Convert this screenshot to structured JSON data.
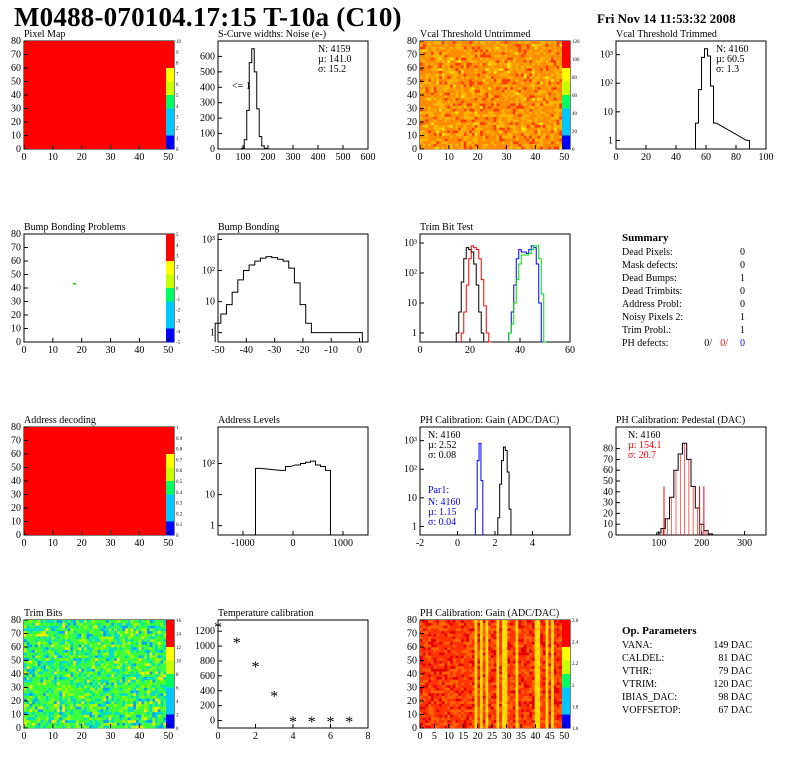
{
  "header": {
    "title": "M0488-070104.17:15 T-10a (C10)",
    "timestamp": "Fri Nov 14 11:53:32 2008"
  },
  "colors": {
    "red": "#ff0000",
    "blue": "#0000ff",
    "green": "#00dd00",
    "black": "#000000"
  },
  "chart_data": [
    {
      "id": "pixel-map",
      "type": "heatmap",
      "title": "Pixel Map",
      "xlim": [
        0,
        52
      ],
      "ylim": [
        0,
        80
      ],
      "xticks": [
        "0",
        "10",
        "20",
        "30",
        "40",
        "50"
      ],
      "yticks": [
        "0",
        "10",
        "20",
        "30",
        "40",
        "50",
        "60",
        "70",
        "80"
      ],
      "fill": "uniform-red",
      "value": 10,
      "palette_ticks": [
        "0",
        "1",
        "2",
        "3",
        "4",
        "5",
        "6",
        "7",
        "8",
        "9",
        "10"
      ]
    },
    {
      "id": "scurve-noise",
      "type": "bar",
      "title": "S-Curve widths: Noise (e-)",
      "xlim": [
        0,
        600
      ],
      "ylim": [
        0,
        700
      ],
      "xticks": [
        "0",
        "100",
        "200",
        "300",
        "400",
        "500",
        "600"
      ],
      "yticks": [
        "0",
        "100",
        "200",
        "300",
        "400",
        "500",
        "600"
      ],
      "x": [
        100,
        110,
        120,
        130,
        140,
        150,
        160,
        170,
        180,
        190,
        200
      ],
      "values": [
        5,
        60,
        250,
        560,
        650,
        500,
        260,
        80,
        20,
        5,
        0
      ],
      "stats": [
        "N: 4159",
        "µ: 141.0",
        "σ: 15.2"
      ],
      "annotation": "<= 1"
    },
    {
      "id": "vcal-untrimmed",
      "type": "heatmap",
      "title": "Vcal Threshold Untrimmed",
      "xlim": [
        0,
        52
      ],
      "ylim": [
        0,
        80
      ],
      "xticks": [
        "0",
        "10",
        "20",
        "30",
        "40",
        "50"
      ],
      "yticks": [
        "0",
        "10",
        "20",
        "30",
        "40",
        "50",
        "60",
        "70",
        "80"
      ],
      "fill": "noise-orange",
      "palette_ticks": [
        "0",
        "20",
        "40",
        "60",
        "80",
        "100",
        "120"
      ]
    },
    {
      "id": "vcal-trimmed",
      "type": "bar",
      "title": "Vcal Threshold Trimmed",
      "xlim": [
        0,
        100
      ],
      "ylim": [
        0.5,
        3000
      ],
      "log_y": true,
      "xticks": [
        "0",
        "20",
        "40",
        "60",
        "80",
        "100"
      ],
      "yticks": [
        "1",
        "10",
        "10²",
        "10³"
      ],
      "x": [
        54,
        56,
        58,
        60,
        62,
        64,
        66,
        88
      ],
      "values": [
        4,
        60,
        800,
        1600,
        900,
        80,
        4,
        1
      ],
      "stats": [
        "N: 4160",
        "µ: 60.5",
        "σ:  1.3"
      ]
    },
    {
      "id": "bump-bonding-problems",
      "type": "heatmap",
      "title": "Bump Bonding Problems",
      "xlim": [
        0,
        52
      ],
      "ylim": [
        0,
        80
      ],
      "xticks": [
        "0",
        "10",
        "20",
        "30",
        "40",
        "50"
      ],
      "yticks": [
        "0",
        "10",
        "20",
        "30",
        "40",
        "50",
        "60",
        "70",
        "80"
      ],
      "fill": "sparse",
      "points": [
        [
          17,
          43
        ]
      ],
      "palette_ticks": [
        "-5",
        "-4",
        "-3",
        "-2",
        "-1",
        "0",
        "1",
        "2",
        "3",
        "4",
        "5"
      ]
    },
    {
      "id": "bump-bonding",
      "type": "bar",
      "title": "Bump Bonding",
      "xlim": [
        -50,
        3
      ],
      "ylim": [
        0.5,
        1500
      ],
      "log_y": true,
      "xticks": [
        "-50",
        "-40",
        "-30",
        "-20",
        "-10",
        "0"
      ],
      "yticks": [
        "1",
        "10",
        "10²",
        "10³"
      ],
      "x": [
        -50,
        -48,
        -46,
        -44,
        -42,
        -40,
        -38,
        -36,
        -34,
        -32,
        -30,
        -28,
        -26,
        -24,
        -22,
        -20,
        -18,
        -16,
        0
      ],
      "values": [
        2,
        4,
        8,
        20,
        50,
        100,
        150,
        200,
        250,
        280,
        260,
        230,
        200,
        120,
        40,
        8,
        2,
        1,
        1
      ]
    },
    {
      "id": "trim-bit-test",
      "type": "line",
      "title": "Trim Bit Test",
      "xlim": [
        0,
        60
      ],
      "ylim": [
        0.5,
        2000
      ],
      "log_y": true,
      "xticks": [
        "0",
        "20",
        "40",
        "60"
      ],
      "yticks": [
        "1",
        "10",
        "10²",
        "10³"
      ],
      "series": [
        {
          "x": [
            15,
            16,
            17,
            18,
            19,
            20,
            21,
            22,
            23,
            24,
            25,
            26
          ],
          "values": [
            1,
            5,
            50,
            300,
            700,
            600,
            500,
            200,
            40,
            5,
            1,
            0
          ]
        },
        {
          "x": [
            17,
            18,
            19,
            20,
            21,
            22,
            23,
            24,
            25,
            26,
            27,
            28
          ],
          "values": [
            1,
            5,
            40,
            300,
            800,
            700,
            600,
            300,
            60,
            8,
            1,
            0
          ]
        },
        {
          "x": [
            36,
            37,
            38,
            39,
            40,
            41,
            42,
            43,
            44,
            45,
            46,
            47,
            48,
            49
          ],
          "values": [
            1,
            5,
            40,
            300,
            600,
            500,
            500,
            450,
            600,
            800,
            700,
            200,
            10,
            0
          ]
        },
        {
          "x": [
            36,
            37,
            38,
            39,
            40,
            41,
            42,
            43,
            44,
            45,
            46,
            47,
            48,
            49,
            50
          ],
          "values": [
            1,
            2,
            10,
            60,
            200,
            400,
            400,
            400,
            450,
            600,
            800,
            800,
            300,
            20,
            0
          ]
        }
      ]
    },
    {
      "id": "address-decoding",
      "type": "heatmap",
      "title": "Address decoding",
      "xlim": [
        0,
        52
      ],
      "ylim": [
        0,
        80
      ],
      "xticks": [
        "0",
        "10",
        "20",
        "30",
        "40",
        "50"
      ],
      "yticks": [
        "0",
        "10",
        "20",
        "30",
        "40",
        "50",
        "60",
        "70",
        "80"
      ],
      "fill": "uniform-red",
      "value": 1,
      "palette_ticks": [
        "0",
        "0.1",
        "0.2",
        "0.3",
        "0.4",
        "0.5",
        "0.6",
        "0.7",
        "0.8",
        "0.9",
        "1"
      ]
    },
    {
      "id": "address-levels",
      "type": "bar",
      "title": "Address Levels",
      "xlim": [
        -1500,
        1500
      ],
      "ylim": [
        0.5,
        1500
      ],
      "log_y": true,
      "xticks": [
        "-1000",
        "0",
        "1000"
      ],
      "yticks": [
        "1",
        "10",
        "10²"
      ],
      "x": [
        -700,
        -200,
        -100,
        100,
        200,
        300,
        400,
        500,
        600,
        700
      ],
      "values": [
        70,
        60,
        80,
        90,
        100,
        110,
        120,
        90,
        80,
        60
      ]
    },
    {
      "id": "ph-gain",
      "type": "bar",
      "title": "PH Calibration: Gain (ADC/DAC)",
      "xlim": [
        -2,
        6
      ],
      "ylim": [
        0.5,
        3000
      ],
      "log_y": true,
      "xticks": [
        "-2",
        "0",
        "2",
        "4"
      ],
      "yticks": [
        "1",
        "10",
        "10²",
        "10³"
      ],
      "series": [
        {
          "x": [
            2.2,
            2.3,
            2.4,
            2.5,
            2.6,
            2.7,
            2.8
          ],
          "values": [
            2,
            30,
            200,
            600,
            450,
            80,
            4
          ]
        },
        {
          "x": [
            1.0,
            1.1,
            1.2,
            1.3
          ],
          "values": [
            4,
            200,
            800,
            40
          ]
        }
      ],
      "stats": [
        "N: 4160",
        "µ: 2.52",
        "σ: 0.08"
      ],
      "par_label": "Par1:",
      "par_stats": [
        "N: 4160",
        "µ: 1.15",
        "σ: 0.04"
      ]
    },
    {
      "id": "ph-pedestal",
      "type": "bar",
      "title": "PH Calibration: Pedestal (DAC)",
      "xlim": [
        0,
        350
      ],
      "ylim": [
        0,
        100
      ],
      "xticks": [
        "100",
        "200",
        "300"
      ],
      "yticks": [
        "0",
        "10",
        "20",
        "30",
        "40",
        "50",
        "60",
        "70",
        "80"
      ],
      "x": [
        100,
        110,
        120,
        130,
        140,
        150,
        160,
        170,
        180,
        190,
        200,
        210,
        220
      ],
      "values": [
        2,
        6,
        15,
        35,
        60,
        75,
        85,
        70,
        45,
        25,
        10,
        4,
        1
      ],
      "fit_lines": [
        112,
        195,
        205
      ],
      "stats": [
        "N: 4160",
        "µ: 154.1",
        "σ: 20.7"
      ]
    },
    {
      "id": "trim-bits",
      "type": "heatmap",
      "title": "Trim Bits",
      "xlim": [
        0,
        52
      ],
      "ylim": [
        0,
        80
      ],
      "xticks": [
        "0",
        "10",
        "20",
        "30",
        "40",
        "50"
      ],
      "yticks": [
        "0",
        "10",
        "20",
        "30",
        "40",
        "50",
        "60",
        "70",
        "80"
      ],
      "fill": "noise-green",
      "palette_ticks": [
        "0",
        "2",
        "4",
        "6",
        "8",
        "10",
        "12",
        "14",
        "16"
      ]
    },
    {
      "id": "temperature-calibration",
      "type": "scatter",
      "title": "Temperature calibration",
      "xlim": [
        0,
        8
      ],
      "ylim": [
        -100,
        1350
      ],
      "xticks": [
        "0",
        "2",
        "4",
        "6",
        "8"
      ],
      "yticks": [
        "0",
        "200",
        "400",
        "600",
        "800",
        "1000",
        "1200"
      ],
      "x": [
        0,
        1,
        2,
        3,
        4,
        5,
        6,
        7
      ],
      "values": [
        1250,
        1040,
        720,
        320,
        -20,
        -20,
        -20,
        -20
      ]
    },
    {
      "id": "ph-gain-map",
      "type": "heatmap",
      "title": "PH Calibration: Gain (ADC/DAC)",
      "xlim": [
        0,
        52
      ],
      "ylim": [
        0,
        80
      ],
      "xticks": [
        "0",
        "5",
        "10",
        "15",
        "20",
        "25",
        "30",
        "35",
        "40",
        "45",
        "50"
      ],
      "yticks": [
        "0",
        "10",
        "20",
        "30",
        "40",
        "50",
        "60",
        "70",
        "80"
      ],
      "fill": "column-stripes",
      "palette_ticks": [
        "1.6",
        "1.8",
        "2",
        "2.2",
        "2.4",
        "2.6"
      ]
    }
  ],
  "summary": {
    "title": "Summary",
    "rows": [
      {
        "label": "Dead Pixels:",
        "value": "0"
      },
      {
        "label": "Mask defects:",
        "value": "0"
      },
      {
        "label": "Dead Bumps:",
        "value": "1"
      },
      {
        "label": "Dead Trimbits:",
        "value": "0"
      },
      {
        "label": "Address Probl:",
        "value": "0"
      },
      {
        "label": "Noisy Pixels 2:",
        "value": "1"
      },
      {
        "label": "Trim Probl.:",
        "value": "1"
      }
    ],
    "ph_label": "PH defects:",
    "ph_values": [
      "0/",
      "0/",
      "0"
    ]
  },
  "op_params": {
    "title": "Op. Parameters",
    "rows": [
      {
        "label": "VANA:",
        "value": "149 DAC"
      },
      {
        "label": "CALDEL:",
        "value": "81 DAC"
      },
      {
        "label": "VTHR:",
        "value": "79 DAC"
      },
      {
        "label": "VTRIM:",
        "value": "120 DAC"
      },
      {
        "label": "IBIAS_DAC:",
        "value": "98 DAC"
      },
      {
        "label": "VOFFSETOP:",
        "value": "67 DAC"
      }
    ]
  }
}
